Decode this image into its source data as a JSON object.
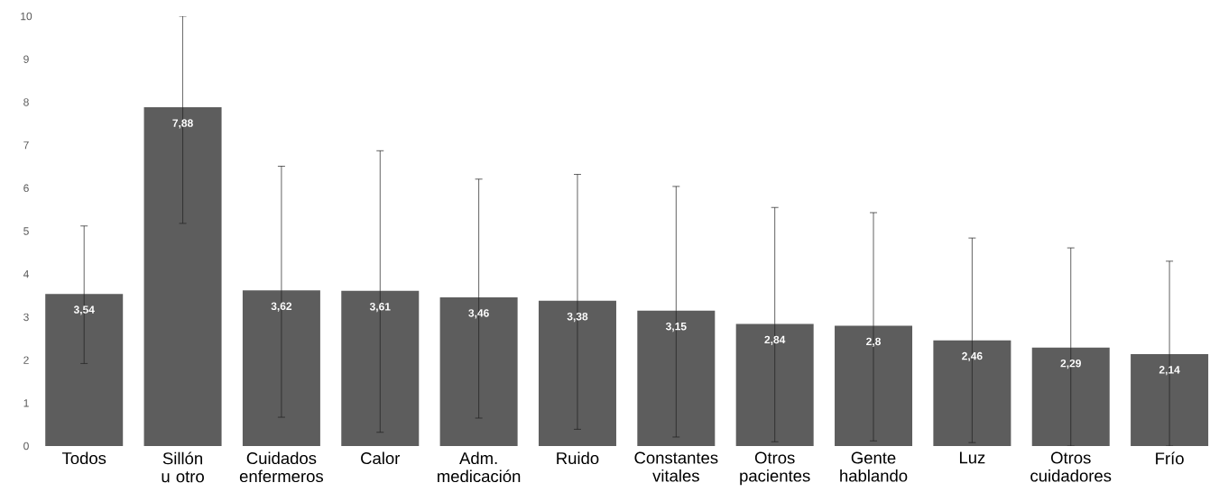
{
  "chart_data": {
    "type": "bar",
    "categories": [
      "Todos",
      "Sillón u otro",
      "Cuidados enfermeros",
      "Calor",
      "Adm. medicación",
      "Ruido",
      "Constantes vitales",
      "Otros pacientes",
      "Gente hablando",
      "Luz",
      "Otros cuidadores",
      "Frío"
    ],
    "values": [
      3.54,
      7.88,
      3.62,
      3.61,
      3.46,
      3.38,
      3.15,
      2.84,
      2.8,
      2.46,
      2.29,
      2.14
    ],
    "value_labels": [
      "3,54",
      "7,88",
      "3,62",
      "3,61",
      "3,46",
      "3,38",
      "3,15",
      "2,84",
      "2,8",
      "2,46",
      "2,29",
      "2,14"
    ],
    "errors": [
      [
        1.92,
        5.12
      ],
      [
        5.18,
        10.0
      ],
      [
        0.67,
        6.51
      ],
      [
        0.32,
        6.87
      ],
      [
        0.65,
        6.21
      ],
      [
        0.39,
        6.32
      ],
      [
        0.21,
        6.04
      ],
      [
        0.1,
        5.55
      ],
      [
        0.12,
        5.43
      ],
      [
        0.08,
        4.84
      ],
      [
        0,
        4.61
      ],
      [
        0,
        4.3
      ]
    ],
    "color": "#5d5d5d",
    "ylim": [
      0,
      10
    ],
    "yticks": [
      0,
      1,
      2,
      3,
      4,
      5,
      6,
      7,
      8,
      9,
      10
    ],
    "grid": false
  }
}
